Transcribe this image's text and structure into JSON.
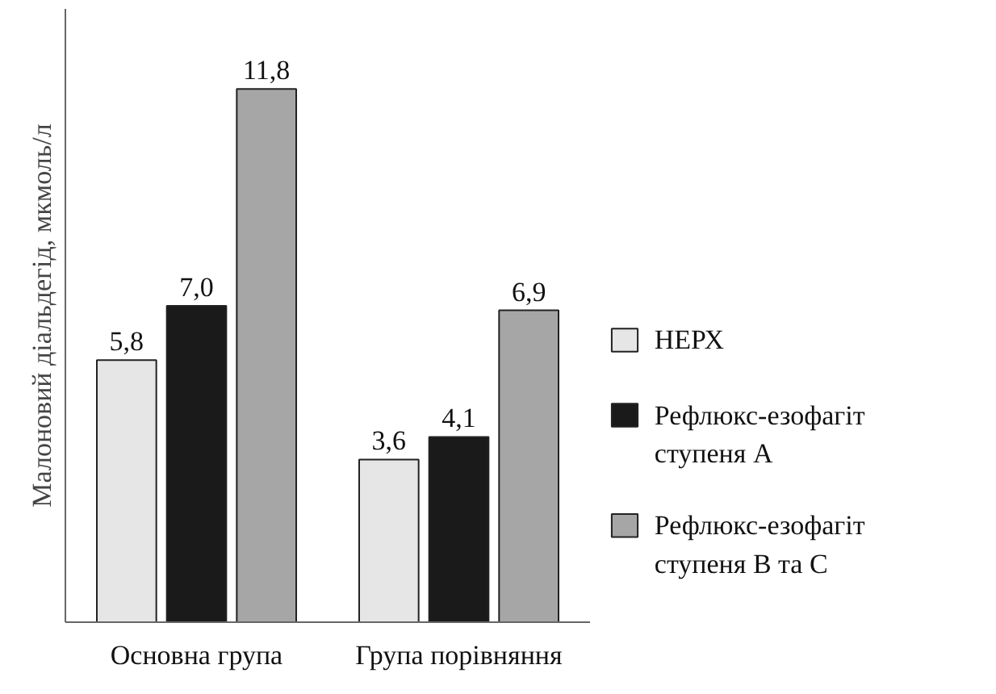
{
  "chart_data": {
    "type": "bar",
    "ylabel": "Малоновий діальдегід, мкмоль/л",
    "categories": [
      "Основна група",
      "Група порівняння"
    ],
    "series": [
      {
        "name": "НЕРХ",
        "color": "#e6e6e6",
        "values": [
          5.8,
          3.6
        ],
        "value_labels": [
          "5,8",
          "3,6"
        ]
      },
      {
        "name": "Рефлюкс-езофагіт\nступеня А",
        "color": "#1a1a1a",
        "values": [
          7.0,
          4.1
        ],
        "value_labels": [
          "7,0",
          "4,1"
        ]
      },
      {
        "name": "Рефлюкс-езофагіт\nступеня В та С",
        "color": "#a6a6a6",
        "values": [
          11.8,
          6.9
        ],
        "value_labels": [
          "11,8",
          "6,9"
        ]
      }
    ],
    "legend": "right",
    "grid": false
  }
}
